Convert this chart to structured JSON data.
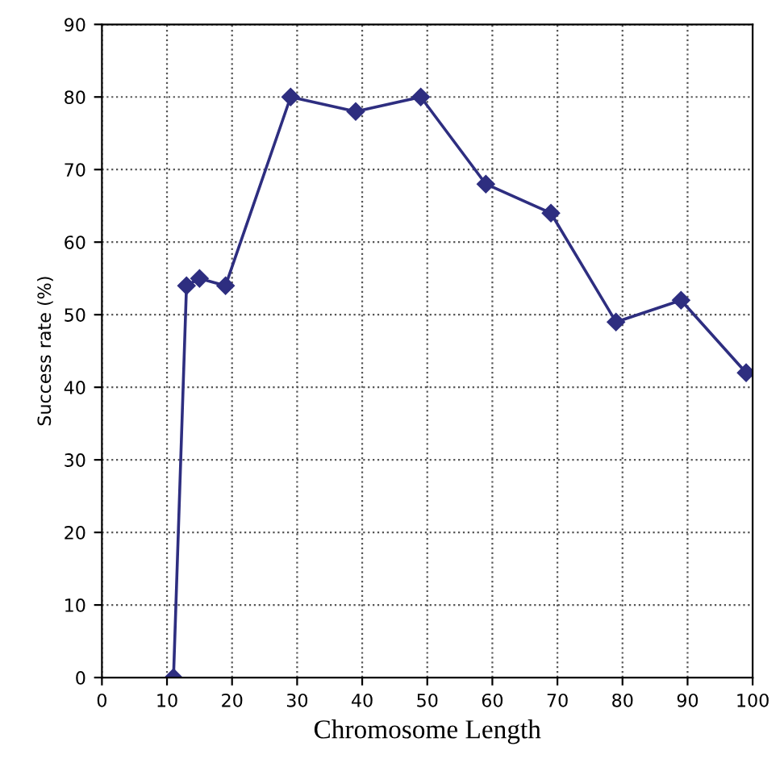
{
  "chart_data": {
    "type": "line",
    "xlabel": "Chromosome Length",
    "ylabel": "Success rate (%)",
    "series": [
      {
        "color": "#2e2e80",
        "x": [
          11,
          13,
          15,
          19,
          29,
          39,
          49,
          59,
          69,
          79,
          89,
          99
        ],
        "values": [
          0,
          54,
          55,
          54,
          80,
          78,
          80,
          68,
          64,
          49,
          52,
          42
        ]
      }
    ],
    "xlim": [
      0,
      100
    ],
    "xticks": [
      0,
      10,
      20,
      30,
      40,
      50,
      60,
      70,
      80,
      90,
      100
    ],
    "ylim": [
      0,
      90
    ],
    "yticks": [
      0,
      10,
      20,
      30,
      40,
      50,
      60,
      70,
      80,
      90
    ],
    "grid": true,
    "marker": "diamond",
    "line_style": "solid"
  }
}
